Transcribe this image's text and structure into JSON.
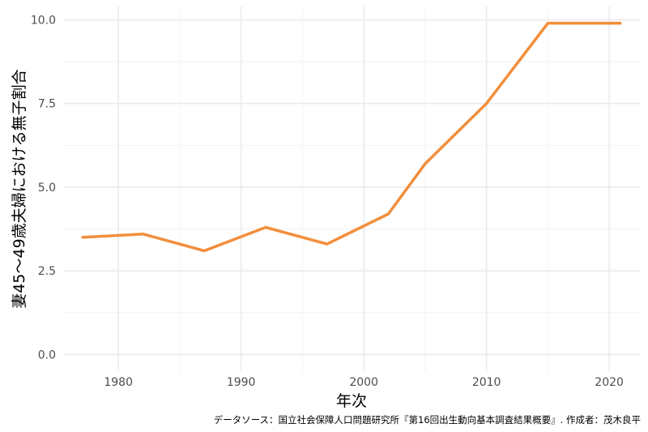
{
  "chart_data": {
    "type": "line",
    "title": "",
    "xlabel": "年次",
    "ylabel": "妻45～49歳夫婦における無子割合",
    "caption": "データソース：国立社会保障人口問題研究所『第16回出生動向基本調査結果概要』. 作成者：茂木良平",
    "xlim": [
      1975.5,
      2022.5
    ],
    "ylim": [
      -0.5,
      10.4
    ],
    "x_ticks": [
      1980,
      1990,
      2000,
      2010,
      2020
    ],
    "x_tick_labels": [
      "1980",
      "1990",
      "2000",
      "2010",
      "2020"
    ],
    "y_ticks": [
      0,
      2.5,
      5,
      7.5,
      10
    ],
    "y_tick_labels": [
      "0.0",
      "2.5",
      "5.0",
      "7.5",
      "10.0"
    ],
    "grid": true,
    "legend": "none",
    "series": [
      {
        "color": "#f28e3c",
        "x": [
          1977,
          1982,
          1987,
          1992,
          1997,
          2002,
          2005,
          2010,
          2015,
          2021
        ],
        "y": [
          3.5,
          3.6,
          3.1,
          3.8,
          3.3,
          4.2,
          5.7,
          7.5,
          9.9,
          9.9
        ]
      }
    ]
  }
}
